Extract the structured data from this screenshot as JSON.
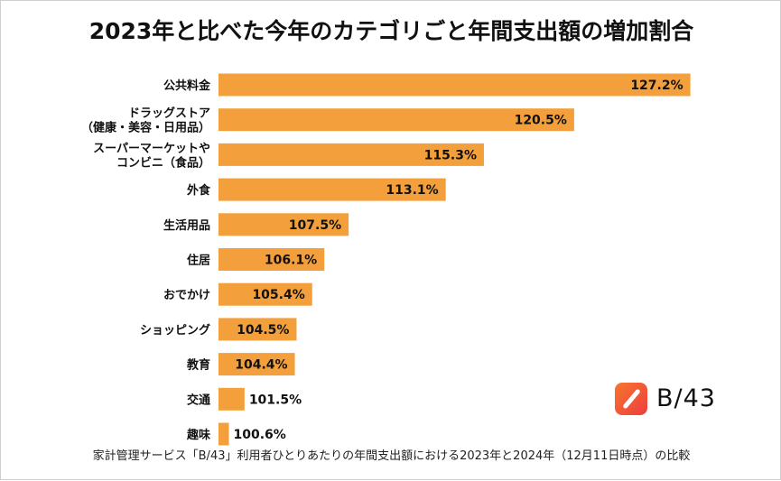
{
  "chart_data": {
    "type": "bar",
    "orientation": "horizontal",
    "title": "2023年と比べた今年のカテゴリごと年間支出額の増加割合",
    "categories": [
      [
        "公共料金"
      ],
      [
        "ドラッグストア",
        "（健康・美容・日用品）"
      ],
      [
        "スーパーマーケットや",
        "コンビニ（食品）"
      ],
      [
        "外食"
      ],
      [
        "生活用品"
      ],
      [
        "住居"
      ],
      [
        "おでかけ"
      ],
      [
        "ショッピング"
      ],
      [
        "教育"
      ],
      [
        "交通"
      ],
      [
        "趣味"
      ]
    ],
    "values": [
      127.2,
      120.5,
      115.3,
      113.1,
      107.5,
      106.1,
      105.4,
      104.5,
      104.4,
      101.5,
      100.6
    ],
    "value_labels": [
      "127.2%",
      "120.5%",
      "115.3%",
      "113.1%",
      "107.5%",
      "106.1%",
      "105.4%",
      "104.5%",
      "104.4%",
      "101.5%",
      "100.6%"
    ],
    "xlim": [
      100,
      128
    ],
    "bar_color": "#f3a03c",
    "grid": false,
    "xlabel": "",
    "ylabel": ""
  },
  "brand": {
    "name": "B/43",
    "accent_from": "#f7752e",
    "accent_to": "#ee3d3d"
  },
  "footnote": "家計管理サービス「B/43」利用者ひとりあたりの年間支出額における2023年と2024年（12月11日時点）の比較"
}
